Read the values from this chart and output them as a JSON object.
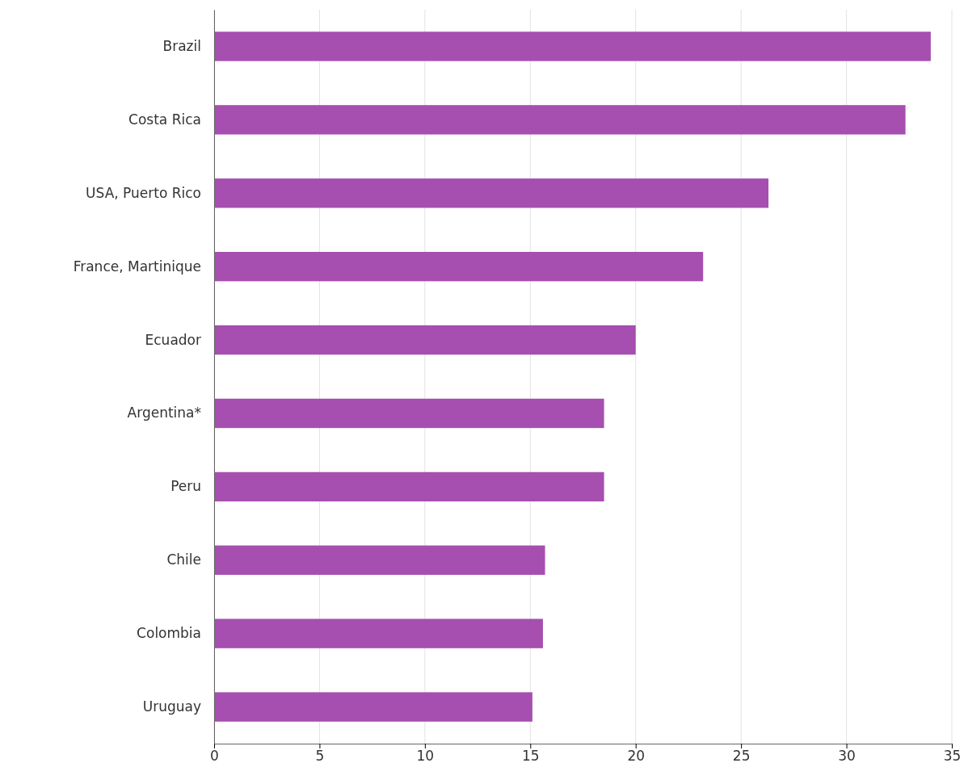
{
  "chart_data": {
    "type": "bar",
    "orientation": "horizontal",
    "categories": [
      "Brazil",
      "Costa Rica",
      "USA, Puerto Rico",
      "France, Martinique",
      "Ecuador",
      "Argentina*",
      "Peru",
      "Chile",
      "Colombia",
      "Uruguay"
    ],
    "values": [
      34.0,
      32.8,
      26.3,
      23.2,
      20.0,
      18.5,
      18.5,
      15.7,
      15.6,
      15.1
    ],
    "color": "#a64fb0",
    "xlim": [
      0,
      35
    ],
    "xticks": [
      0,
      5,
      10,
      15,
      20,
      25,
      30,
      35
    ],
    "grid": "x"
  }
}
